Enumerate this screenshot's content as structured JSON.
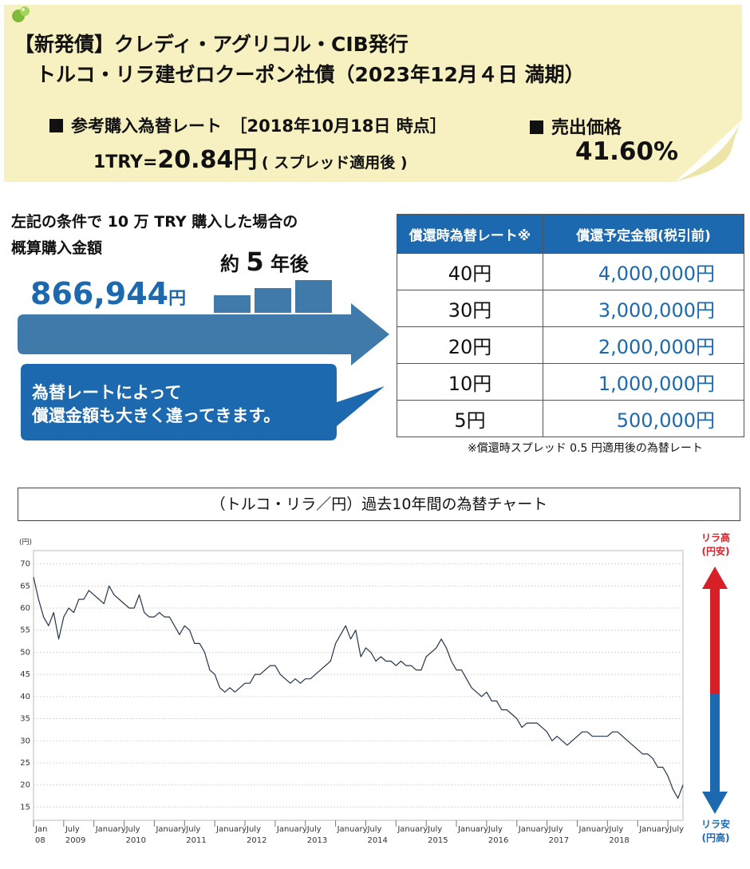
{
  "header": {
    "title_line1": "【新発債】クレディ・アグリコル・CIB発行",
    "title_line2": "トルコ・リラ建ゼロクーポン社債（2023年12月４日 満期）",
    "rate_heading": "参考購入為替レート　［2018年10月18日 時点］",
    "rate_prefix": "1TRY=",
    "rate_value": "20.84",
    "rate_unit": "円",
    "rate_note": "( スプレッド適用後 )",
    "price_heading": "売出価格",
    "price_value": "41.60%"
  },
  "simulation": {
    "condition_line1": "左記の条件で 10 万 TRY 購入した場合の",
    "condition_line2": "概算購入金額",
    "purchase_amount": "866,944",
    "purchase_unit": "円",
    "years_prefix": "約",
    "years_number": "5",
    "years_suffix": "年後",
    "bubble_line1": "為替レートによって",
    "bubble_line2": "償還金額も大きく違ってきます。"
  },
  "redemption_table": {
    "header_rate": "償還時為替レート※",
    "header_amount": "償還予定金額(税引前)",
    "rows": [
      {
        "rate": "40円",
        "amount": "4,000,000",
        "unit": "円"
      },
      {
        "rate": "30円",
        "amount": "3,000,000",
        "unit": "円"
      },
      {
        "rate": "20円",
        "amount": "2,000,000",
        "unit": "円"
      },
      {
        "rate": "10円",
        "amount": "1,000,000",
        "unit": "円"
      },
      {
        "rate": "5円",
        "amount": "500,000",
        "unit": "円"
      }
    ],
    "footnote": "※償還時スプレッド 0.5 円適用後の為替レート"
  },
  "chart_section": {
    "title": "（トルコ・リラ／円）過去10年間の為替チャート",
    "label_up_line1": "リラ高",
    "label_up_line2": "(円安)",
    "label_down_line1": "リラ安",
    "label_down_line2": "(円高)",
    "arrow_up_color": "#d61f26",
    "arrow_down_color": "#1c69b0"
  },
  "chart_data": {
    "type": "line",
    "title": "（トルコ・リラ／円）過去10年間の為替チャート",
    "ylabel": "(円)",
    "ylim": [
      12,
      73
    ],
    "yticks": [
      15,
      20,
      25,
      30,
      35,
      40,
      45,
      50,
      55,
      60,
      65,
      70
    ],
    "grid": true,
    "line_color": "#23354d",
    "xticks": [
      {
        "date": "2008-01",
        "label": "Jan",
        "year": "08"
      },
      {
        "date": "2008-07",
        "label": "July",
        "year": "2009"
      },
      {
        "date": "2009-01",
        "label": "January",
        "year": ""
      },
      {
        "date": "2009-07",
        "label": "July",
        "year": "2010"
      },
      {
        "date": "2010-01",
        "label": "January",
        "year": ""
      },
      {
        "date": "2010-07",
        "label": "July",
        "year": "2011"
      },
      {
        "date": "2011-01",
        "label": "January",
        "year": ""
      },
      {
        "date": "2011-07",
        "label": "July",
        "year": "2012"
      },
      {
        "date": "2012-01",
        "label": "January",
        "year": ""
      },
      {
        "date": "2012-07",
        "label": "July",
        "year": "2013"
      },
      {
        "date": "2013-01",
        "label": "January",
        "year": ""
      },
      {
        "date": "2013-07",
        "label": "July",
        "year": "2014"
      },
      {
        "date": "2014-01",
        "label": "January",
        "year": ""
      },
      {
        "date": "2014-07",
        "label": "July",
        "year": "2015"
      },
      {
        "date": "2015-01",
        "label": "January",
        "year": ""
      },
      {
        "date": "2015-07",
        "label": "July",
        "year": "2016"
      },
      {
        "date": "2016-01",
        "label": "January",
        "year": ""
      },
      {
        "date": "2016-07",
        "label": "July",
        "year": "2017"
      },
      {
        "date": "2017-01",
        "label": "January",
        "year": ""
      },
      {
        "date": "2017-07",
        "label": "July",
        "year": "2018"
      },
      {
        "date": "2018-01",
        "label": "January",
        "year": ""
      },
      {
        "date": "2018-07",
        "label": "July",
        "year": ""
      }
    ],
    "x_start": "2008-01",
    "x_end": "2018-10",
    "series": [
      {
        "x": [
          "2008-01",
          "2008-02",
          "2008-03",
          "2008-04",
          "2008-05",
          "2008-06",
          "2008-07",
          "2008-08",
          "2008-09",
          "2008-10",
          "2008-11",
          "2008-12",
          "2009-01",
          "2009-02",
          "2009-03",
          "2009-04",
          "2009-05",
          "2009-06",
          "2009-07",
          "2009-08",
          "2009-09",
          "2009-10",
          "2009-11",
          "2009-12",
          "2010-01",
          "2010-02",
          "2010-03",
          "2010-04",
          "2010-05",
          "2010-06",
          "2010-07",
          "2010-08",
          "2010-09",
          "2010-10",
          "2010-11",
          "2010-12",
          "2011-01",
          "2011-02",
          "2011-03",
          "2011-04",
          "2011-05",
          "2011-06",
          "2011-07",
          "2011-08",
          "2011-09",
          "2011-10",
          "2011-11",
          "2011-12",
          "2012-01",
          "2012-02",
          "2012-03",
          "2012-04",
          "2012-05",
          "2012-06",
          "2012-07",
          "2012-08",
          "2012-09",
          "2012-10",
          "2012-11",
          "2012-12",
          "2013-01",
          "2013-02",
          "2013-03",
          "2013-04",
          "2013-05",
          "2013-06",
          "2013-07",
          "2013-08",
          "2013-09",
          "2013-10",
          "2013-11",
          "2013-12",
          "2014-01",
          "2014-02",
          "2014-03",
          "2014-04",
          "2014-05",
          "2014-06",
          "2014-07",
          "2014-08",
          "2014-09",
          "2014-10",
          "2014-11",
          "2014-12",
          "2015-01",
          "2015-02",
          "2015-03",
          "2015-04",
          "2015-05",
          "2015-06",
          "2015-07",
          "2015-08",
          "2015-09",
          "2015-10",
          "2015-11",
          "2015-12",
          "2016-01",
          "2016-02",
          "2016-03",
          "2016-04",
          "2016-05",
          "2016-06",
          "2016-07",
          "2016-08",
          "2016-09",
          "2016-10",
          "2016-11",
          "2016-12",
          "2017-01",
          "2017-02",
          "2017-03",
          "2017-04",
          "2017-05",
          "2017-06",
          "2017-07",
          "2017-08",
          "2017-09",
          "2017-10",
          "2017-11",
          "2017-12",
          "2018-01",
          "2018-02",
          "2018-03",
          "2018-04",
          "2018-05",
          "2018-06",
          "2018-07",
          "2018-08",
          "2018-09",
          "2018-10"
        ],
        "values": [
          67,
          62,
          58,
          56,
          59,
          53,
          58,
          60,
          59,
          62,
          62,
          64,
          63,
          62,
          61,
          65,
          63,
          62,
          61,
          60,
          60,
          63,
          59,
          58,
          58,
          59,
          58,
          58,
          56,
          54,
          56,
          55,
          52,
          52,
          50,
          46,
          45,
          42,
          41,
          42,
          41,
          42,
          43,
          43,
          45,
          45,
          46,
          47,
          47,
          45,
          44,
          43,
          44,
          43,
          44,
          44,
          45,
          46,
          47,
          48,
          52,
          54,
          56,
          53,
          55,
          49,
          51,
          50,
          48,
          49,
          48,
          48,
          47,
          48,
          47,
          47,
          46,
          46,
          49,
          50,
          51,
          53,
          51,
          48,
          46,
          46,
          44,
          42,
          41,
          40,
          41,
          39,
          39,
          37,
          37,
          36,
          35,
          33,
          34,
          34,
          34,
          33,
          32,
          30,
          31,
          30,
          29,
          30,
          31,
          32,
          32,
          31,
          31,
          31,
          31,
          32,
          32,
          31,
          30,
          29,
          28,
          27,
          27,
          26,
          24,
          24,
          22,
          19,
          17,
          20
        ]
      }
    ]
  }
}
